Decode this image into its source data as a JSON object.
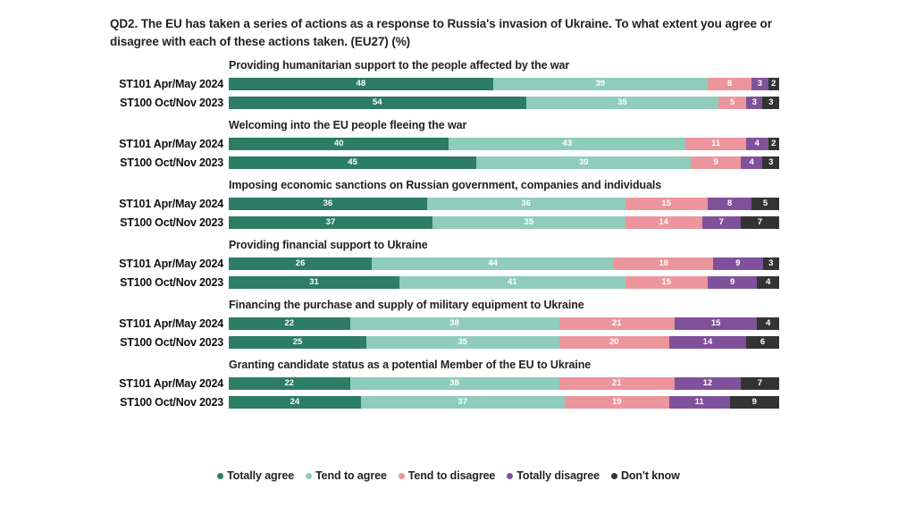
{
  "title": "QD2. The EU has taken a series of actions as a response to Russia's invasion of Ukraine. To what extent you agree or disagree with each of these actions taken. (EU27) (%)",
  "legend": [
    {
      "label": "Totally agree",
      "color": "#2c7c66"
    },
    {
      "label": "Tend to agree",
      "color": "#8fccbc"
    },
    {
      "label": "Tend to disagree",
      "color": "#ec959c"
    },
    {
      "label": "Totally disagree",
      "color": "#80519b"
    },
    {
      "label": "Don't know",
      "color": "#333333"
    }
  ],
  "chart_data": {
    "type": "bar",
    "orientation": "horizontal",
    "stacked": true,
    "x_range": [
      0,
      100
    ],
    "grid": false,
    "legend_position": "bottom",
    "series_labels": [
      "Totally agree",
      "Tend to agree",
      "Tend to disagree",
      "Totally disagree",
      "Don't know"
    ],
    "series_colors": [
      "#2c7c66",
      "#8fccbc",
      "#ec959c",
      "#80519b",
      "#333333"
    ],
    "groups": [
      {
        "title": "Providing humanitarian support to the people affected by the war",
        "rows": [
          {
            "label": "ST101 Apr/May 2024",
            "values": [
              48,
              39,
              8,
              3,
              2
            ]
          },
          {
            "label": "ST100 Oct/Nov 2023",
            "values": [
              54,
              35,
              5,
              3,
              3
            ]
          }
        ]
      },
      {
        "title": "Welcoming into the EU people fleeing the war",
        "rows": [
          {
            "label": "ST101 Apr/May 2024",
            "values": [
              40,
              43,
              11,
              4,
              2
            ]
          },
          {
            "label": "ST100 Oct/Nov 2023",
            "values": [
              45,
              39,
              9,
              4,
              3
            ]
          }
        ]
      },
      {
        "title": "Imposing economic sanctions on Russian government, companies and individuals",
        "rows": [
          {
            "label": "ST101 Apr/May 2024",
            "values": [
              36,
              36,
              15,
              8,
              5
            ]
          },
          {
            "label": "ST100 Oct/Nov 2023",
            "values": [
              37,
              35,
              14,
              7,
              7
            ]
          }
        ]
      },
      {
        "title": "Providing financial support to Ukraine",
        "rows": [
          {
            "label": "ST101 Apr/May 2024",
            "values": [
              26,
              44,
              18,
              9,
              3
            ]
          },
          {
            "label": "ST100 Oct/Nov 2023",
            "values": [
              31,
              41,
              15,
              9,
              4
            ]
          }
        ]
      },
      {
        "title": "Financing the purchase and supply of military equipment to Ukraine",
        "rows": [
          {
            "label": "ST101 Apr/May 2024",
            "values": [
              22,
              38,
              21,
              15,
              4
            ]
          },
          {
            "label": "ST100 Oct/Nov 2023",
            "values": [
              25,
              35,
              20,
              14,
              6
            ]
          }
        ]
      },
      {
        "title": "Granting candidate status as a potential Member of the EU to Ukraine",
        "rows": [
          {
            "label": "ST101 Apr/May 2024",
            "values": [
              22,
              38,
              21,
              12,
              7
            ]
          },
          {
            "label": "ST100 Oct/Nov 2023",
            "values": [
              24,
              37,
              19,
              11,
              9
            ]
          }
        ]
      }
    ]
  }
}
